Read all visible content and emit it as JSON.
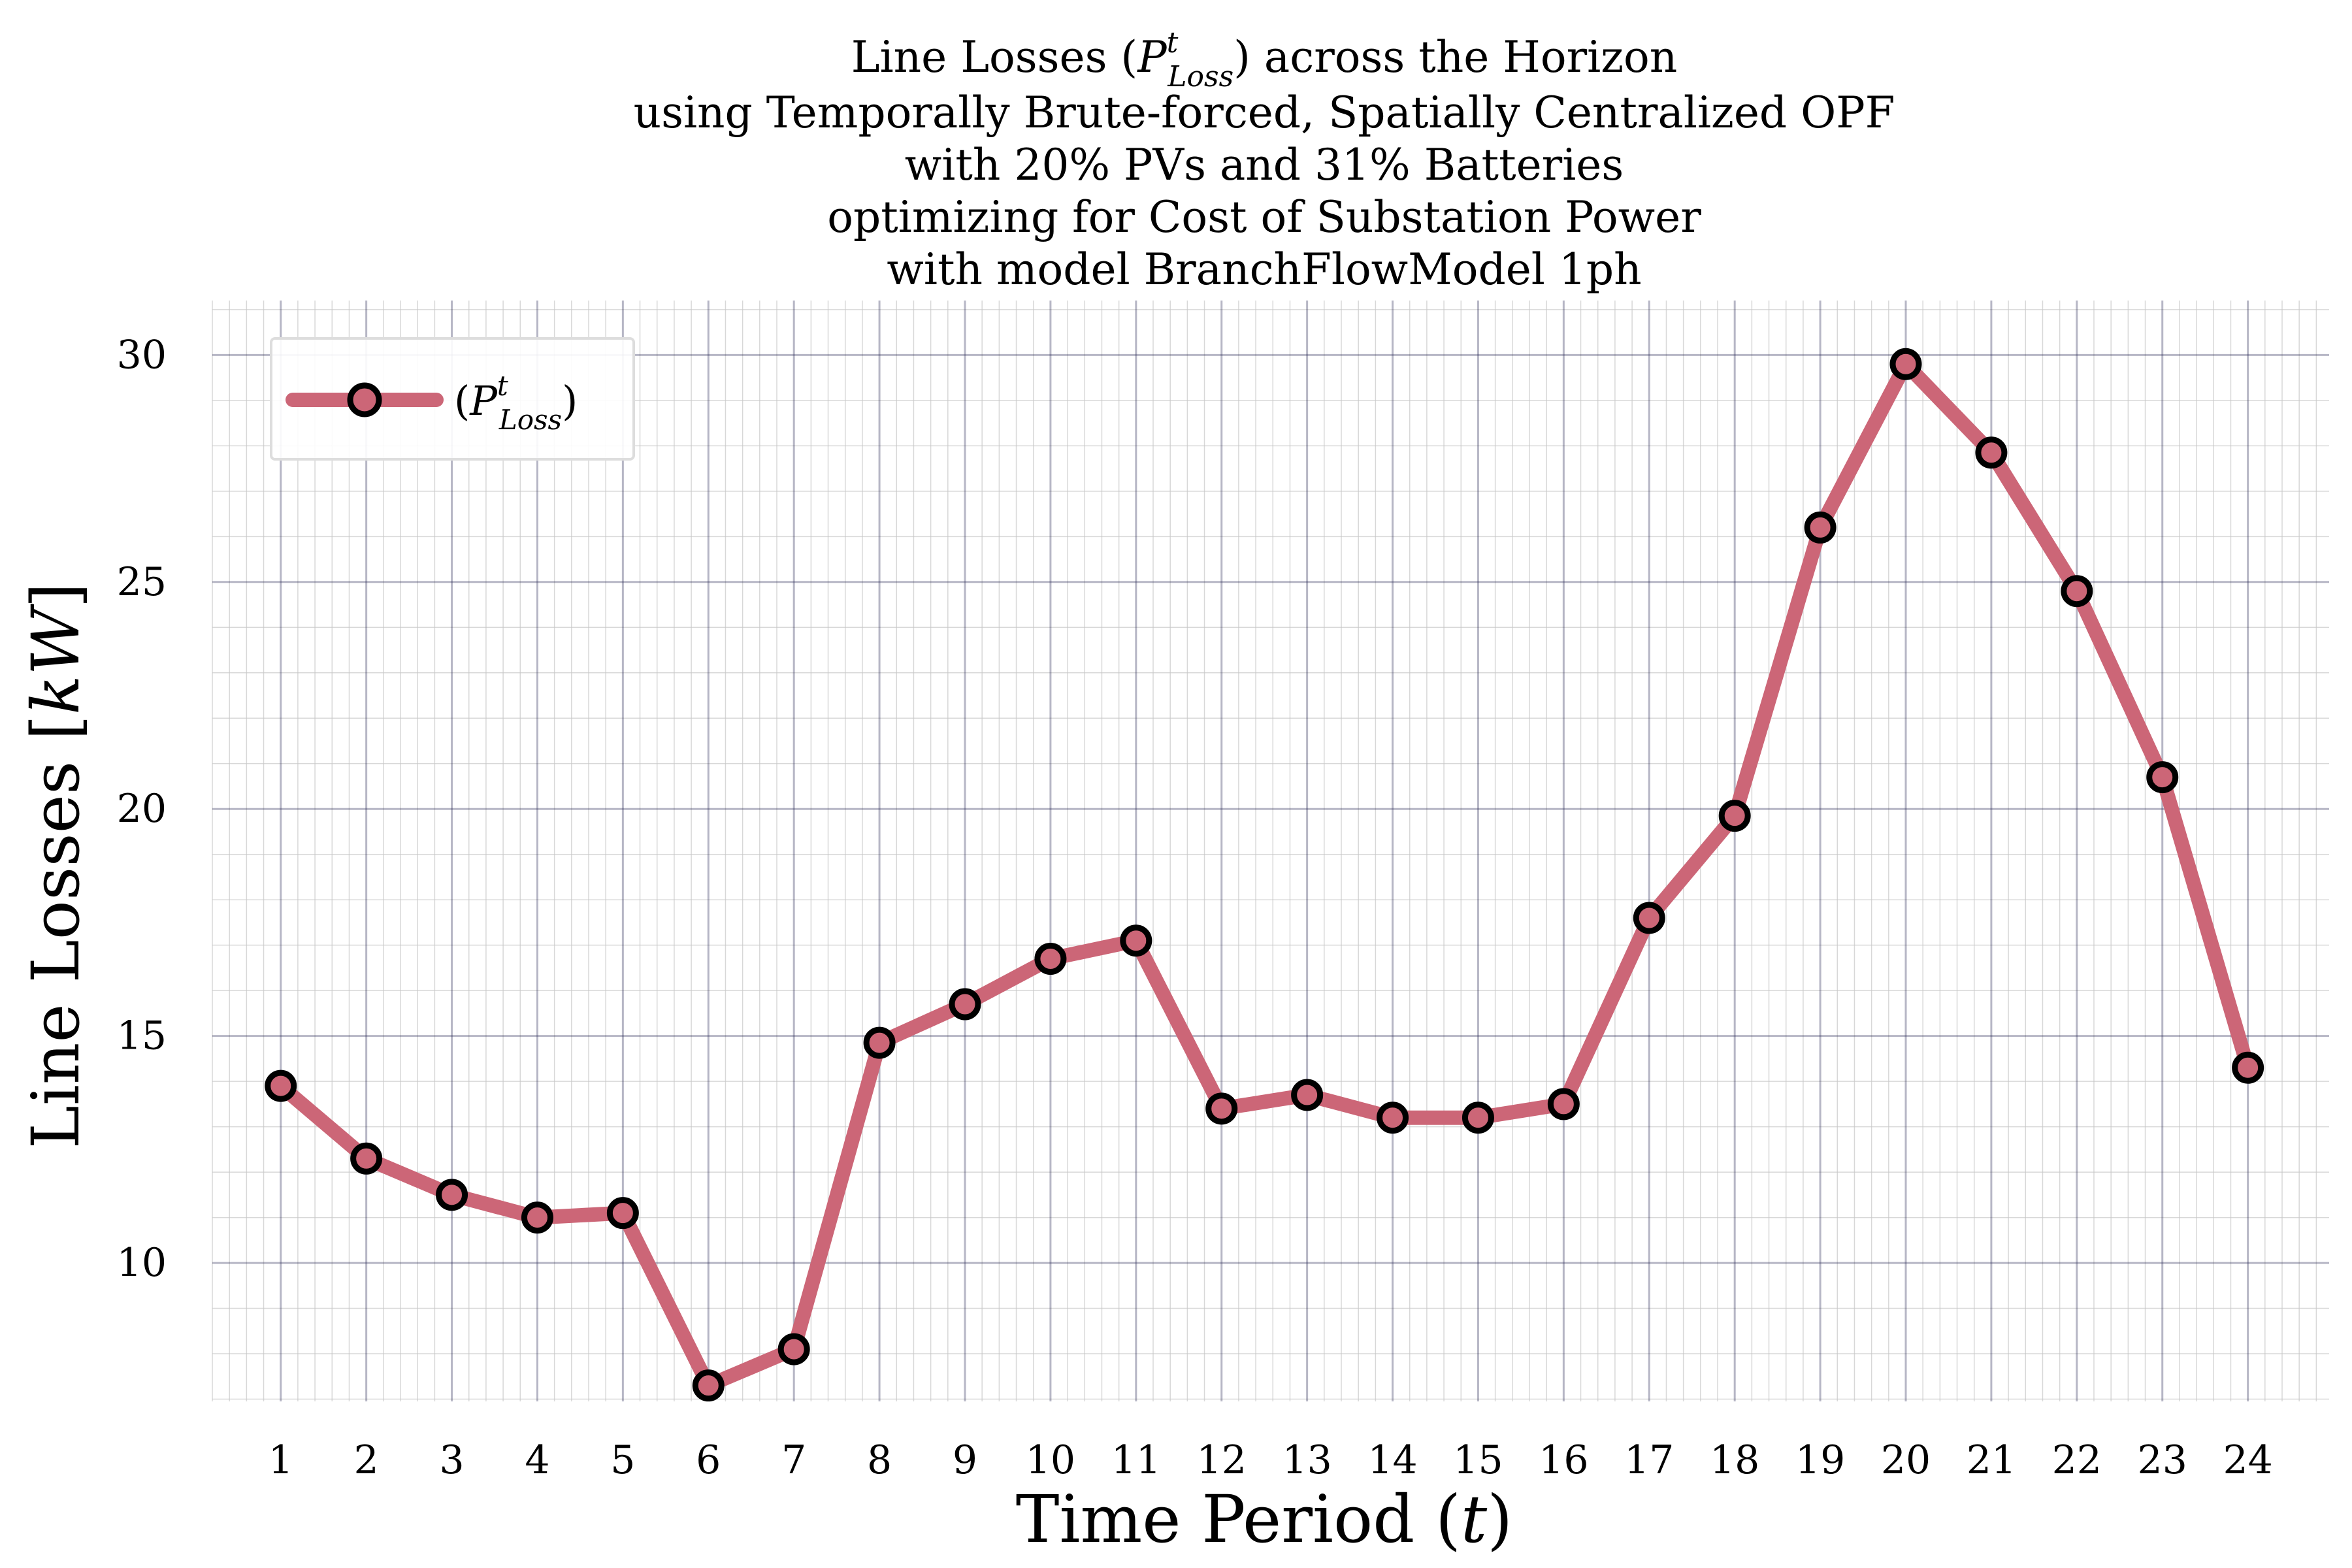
{
  "chart_data": {
    "type": "line",
    "title_lines": [
      "Line Losses (P^t_Loss) across the Horizon",
      "using Temporally Brute-forced, Spatially Centralized OPF",
      "with 20% PVs and 31% Batteries",
      "optimizing for Cost of Substation Power",
      "with model BranchFlowModel 1ph"
    ],
    "title_parts": {
      "line1_pre": "Line Losses (",
      "line1_sym": "P",
      "line1_sup": "t",
      "line1_sub": "Loss",
      "line1_post": ") across the Horizon"
    },
    "xlabel": {
      "pre": "Time Period (",
      "sym": "t",
      "post": ")"
    },
    "ylabel": {
      "pre": "Line Losses [",
      "sym": "kW",
      "post": "]"
    },
    "x": [
      1,
      2,
      3,
      4,
      5,
      6,
      7,
      8,
      9,
      10,
      11,
      12,
      13,
      14,
      15,
      16,
      17,
      18,
      19,
      20,
      21,
      22,
      23,
      24
    ],
    "x_tick_labels": [
      "1",
      "2",
      "3",
      "4",
      "5",
      "6",
      "7",
      "8",
      "9",
      "10",
      "11",
      "12",
      "13",
      "14",
      "15",
      "16",
      "17",
      "18",
      "19",
      "20",
      "21",
      "22",
      "23",
      "24"
    ],
    "y_ticks": [
      10,
      15,
      20,
      25,
      30
    ],
    "y_tick_labels": [
      "10",
      "15",
      "20",
      "25",
      "30"
    ],
    "xlim": [
      0.2,
      24.95
    ],
    "ylim": [
      6.95,
      31.2
    ],
    "grid": true,
    "legend": {
      "placement": "top-left",
      "entry": {
        "pre": "(",
        "sym": "P",
        "sup": "t",
        "sub": "Loss",
        "post": ")"
      }
    },
    "series": [
      {
        "name": "(P^t_Loss)",
        "values": [
          13.9,
          12.3,
          11.5,
          11.0,
          11.1,
          7.3,
          8.1,
          14.85,
          15.7,
          16.7,
          17.1,
          13.4,
          13.7,
          13.2,
          13.2,
          13.5,
          17.6,
          19.85,
          26.2,
          29.8,
          27.85,
          24.8,
          20.7,
          14.3
        ]
      }
    ],
    "colors": {
      "line": "#cc6677",
      "marker_fill": "#cc6677",
      "marker_edge": "#000000",
      "major_grid": "#2d2d5a",
      "minor_grid": "#c8c8c8",
      "legend_border": "#dddddd"
    }
  }
}
